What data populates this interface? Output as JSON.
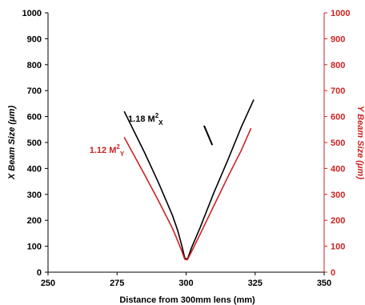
{
  "chart_data": {
    "type": "line",
    "xlabel": "Distance from 300mm lens (mm)",
    "ylabel_left": "X Beam Size (μm)",
    "ylabel_right": "Y Beam Size (μm)",
    "xlim": [
      250,
      350
    ],
    "ylim_left": [
      0,
      1000
    ],
    "ylim_right": [
      0,
      1000
    ],
    "x_ticks": [
      "250",
      "275",
      "300",
      "325",
      "350"
    ],
    "y_ticks_left": [
      "0",
      "100",
      "200",
      "300",
      "400",
      "500",
      "600",
      "700",
      "800",
      "900",
      "1000"
    ],
    "y_ticks_right": [
      "0",
      "100",
      "200",
      "300",
      "400",
      "500",
      "600",
      "700",
      "800",
      "900",
      "1000"
    ],
    "grid": false,
    "colors": {
      "x_series": "#000000",
      "y_series": "#cc2222"
    },
    "series": [
      {
        "axis": "left",
        "color": "#000000",
        "x": [
          277.6,
          285,
          290,
          295,
          297,
          298.5,
          299.5,
          300.5,
          302,
          305,
          310,
          315,
          320,
          324.5
        ],
        "y": [
          620,
          460,
          345,
          220,
          160,
          100,
          55,
          50,
          95,
          170,
          305,
          430,
          560,
          665
        ]
      },
      {
        "axis": "right",
        "color": "#cc2222",
        "x": [
          277.6,
          285,
          290,
          295,
          297,
          298.5,
          299.5,
          300.5,
          302,
          305,
          310,
          315,
          320,
          323.5
        ],
        "y": [
          520,
          375,
          275,
          170,
          120,
          80,
          50,
          48,
          80,
          145,
          255,
          365,
          470,
          555
        ]
      }
    ],
    "annotations": [
      {
        "id": "x",
        "label": "1.18 M",
        "sup": "2",
        "sub": "X",
        "color": "#000000",
        "x": 279,
        "y": 580
      },
      {
        "id": "y",
        "label": "1.12 M",
        "sup": "2",
        "sub": "Y",
        "color": "#cc2222",
        "x": 265,
        "y": 460
      }
    ],
    "marker_segment": {
      "color": "#000000",
      "x": [
        306.5,
        309.5
      ],
      "y": [
        565,
        490
      ]
    }
  }
}
